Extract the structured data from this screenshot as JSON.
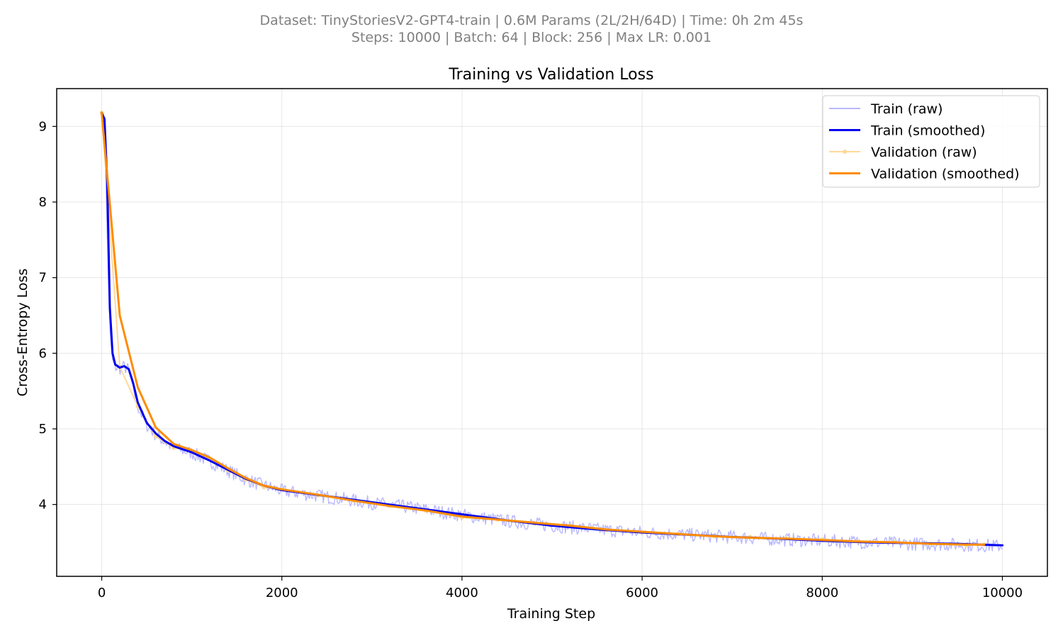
{
  "header": {
    "subtitle_line1": "Dataset: TinyStoriesV2-GPT4-train | 0.6M Params (2L/2H/64D) | Time: 0h 2m 45s",
    "subtitle_line2": "Steps: 10000 | Batch: 64 | Block: 256 | Max LR: 0.001"
  },
  "chart_data": {
    "type": "line",
    "title": "Training vs Validation Loss",
    "xlabel": "Training Step",
    "ylabel": "Cross-Entropy Loss",
    "xlim": [
      -500,
      10500
    ],
    "ylim": [
      3.05,
      9.5
    ],
    "xticks": [
      0,
      2000,
      4000,
      6000,
      8000,
      10000
    ],
    "yticks": [
      4,
      5,
      6,
      7,
      8,
      9
    ],
    "grid": true,
    "legend_position": "top-right",
    "series": [
      {
        "name": "Train (raw)",
        "color": "#b8b8ff",
        "style": "thin-noisy",
        "x": [
          0,
          30,
          60,
          90,
          120,
          150,
          200,
          250,
          300,
          350,
          400,
          500,
          600,
          700,
          800,
          1000,
          1200,
          1400,
          1600,
          1800,
          2000,
          2500,
          3000,
          3500,
          4000,
          4500,
          5000,
          5500,
          6000,
          6500,
          7000,
          7500,
          8000,
          8500,
          9000,
          9500,
          10000
        ],
        "y": [
          9.15,
          9.05,
          7.6,
          6.3,
          5.9,
          5.82,
          5.8,
          5.82,
          5.78,
          5.55,
          5.3,
          5.05,
          4.92,
          4.83,
          4.75,
          4.68,
          4.57,
          4.45,
          4.33,
          4.25,
          4.18,
          4.1,
          4.02,
          3.95,
          3.86,
          3.78,
          3.72,
          3.67,
          3.63,
          3.6,
          3.57,
          3.54,
          3.52,
          3.5,
          3.48,
          3.47,
          3.45
        ]
      },
      {
        "name": "Train (smoothed)",
        "color": "#0000ee",
        "style": "thick",
        "x": [
          0,
          30,
          60,
          90,
          120,
          150,
          200,
          250,
          300,
          350,
          400,
          500,
          600,
          700,
          800,
          1000,
          1200,
          1400,
          1600,
          1800,
          2000,
          2500,
          3000,
          3500,
          4000,
          4500,
          5000,
          5500,
          6000,
          6500,
          7000,
          7500,
          8000,
          8500,
          9000,
          9500,
          10000
        ],
        "y": [
          9.18,
          9.1,
          8.3,
          6.6,
          6.0,
          5.85,
          5.81,
          5.83,
          5.79,
          5.6,
          5.35,
          5.08,
          4.94,
          4.84,
          4.77,
          4.69,
          4.58,
          4.46,
          4.34,
          4.25,
          4.19,
          4.11,
          4.03,
          3.95,
          3.87,
          3.79,
          3.72,
          3.67,
          3.63,
          3.6,
          3.57,
          3.55,
          3.52,
          3.5,
          3.49,
          3.48,
          3.46
        ]
      },
      {
        "name": "Validation (raw)",
        "color": "#ffd898",
        "style": "thin-markers",
        "x": [
          0,
          200,
          400,
          600,
          800,
          1000,
          1200,
          1400,
          1600,
          1800,
          2000,
          2400,
          2800,
          3200,
          3600,
          4000,
          4400,
          4800,
          5200,
          5600,
          6000,
          6400,
          6800,
          7200,
          7600,
          8000,
          8400,
          8800,
          9200,
          9600,
          9800
        ],
        "y": [
          9.18,
          5.82,
          5.3,
          4.9,
          4.75,
          4.7,
          4.6,
          4.45,
          4.33,
          4.23,
          4.2,
          4.12,
          4.05,
          3.98,
          3.92,
          3.83,
          3.8,
          3.75,
          3.72,
          3.66,
          3.63,
          3.61,
          3.58,
          3.57,
          3.55,
          3.54,
          3.51,
          3.5,
          3.48,
          3.46,
          3.47
        ]
      },
      {
        "name": "Validation (smoothed)",
        "color": "#ff8c00",
        "style": "thick",
        "x": [
          0,
          200,
          400,
          600,
          800,
          1000,
          1200,
          1400,
          1600,
          1800,
          2000,
          2400,
          2800,
          3200,
          3600,
          4000,
          4400,
          4800,
          5200,
          5600,
          6000,
          6400,
          6800,
          7200,
          7600,
          8000,
          8400,
          8800,
          9200,
          9600,
          9800
        ],
        "y": [
          9.18,
          6.5,
          5.55,
          5.02,
          4.8,
          4.72,
          4.62,
          4.48,
          4.35,
          4.25,
          4.2,
          4.13,
          4.05,
          3.98,
          3.92,
          3.84,
          3.8,
          3.76,
          3.72,
          3.67,
          3.64,
          3.61,
          3.58,
          3.56,
          3.55,
          3.53,
          3.51,
          3.5,
          3.48,
          3.47,
          3.47
        ]
      }
    ]
  }
}
